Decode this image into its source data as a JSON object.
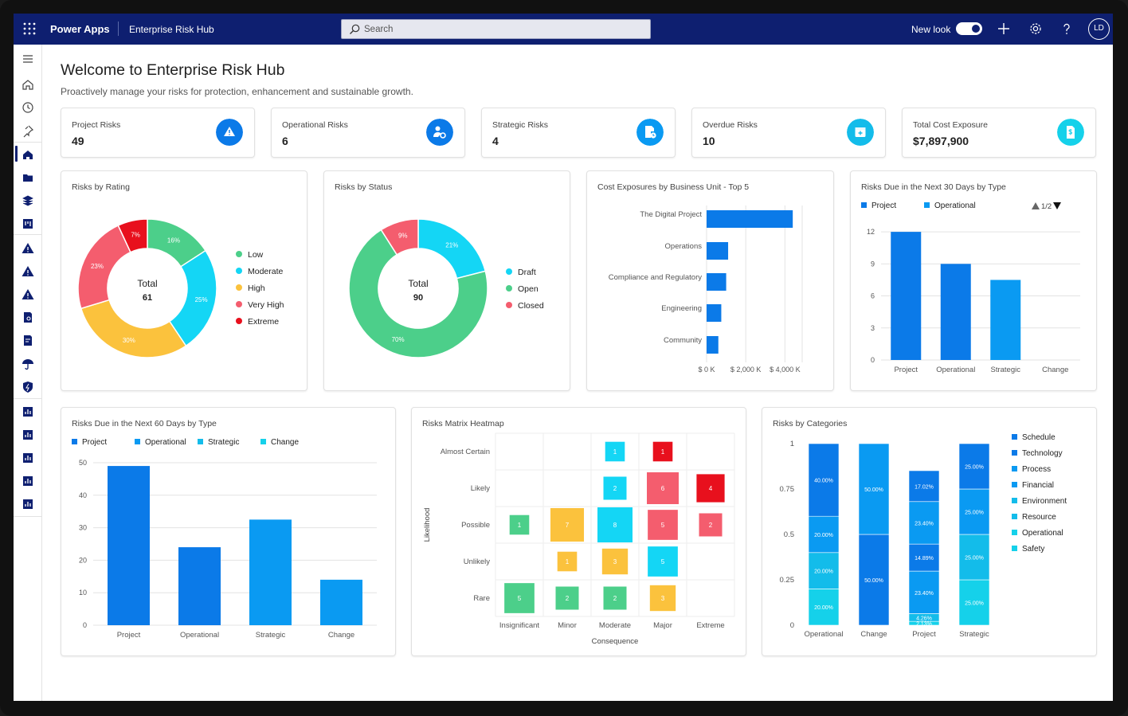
{
  "app": {
    "name": "Power Apps",
    "environment": "Enterprise Risk Hub",
    "search_placeholder": "Search",
    "new_look_label": "New look",
    "avatar_initials": "LD"
  },
  "page": {
    "title": "Welcome to Enterprise Risk Hub",
    "subtitle": "Proactively manage your risks for protection, enhancement and sustainable growth."
  },
  "kpis": [
    {
      "label": "Project Risks",
      "value": "49",
      "color": "#0b7ae8",
      "icon": "warning-icon"
    },
    {
      "label": "Operational Risks",
      "value": "6",
      "color": "#0b7ae8",
      "icon": "person-gear-icon"
    },
    {
      "label": "Strategic Risks",
      "value": "4",
      "color": "#0a9af2",
      "icon": "document-clock-icon"
    },
    {
      "label": "Overdue Risks",
      "value": "10",
      "color": "#13bcea",
      "icon": "calendar-icon"
    },
    {
      "label": "Total Cost Exposure",
      "value": "$7,897,900",
      "color": "#15d1ea",
      "icon": "document-dollar-icon"
    }
  ],
  "charts": {
    "rating": {
      "title": "Risks by Rating",
      "center_label": "Total",
      "center_value": "61",
      "slices": [
        {
          "name": "Low",
          "value": 16,
          "label": "16%",
          "color": "#4ccf8a"
        },
        {
          "name": "Moderate",
          "value": 25,
          "label": "25%",
          "color": "#14d6f5"
        },
        {
          "name": "High",
          "value": 30,
          "label": "30%",
          "color": "#fbc23d"
        },
        {
          "name": "Very High",
          "value": 23,
          "label": "23%",
          "color": "#f45d6e"
        },
        {
          "name": "Extreme",
          "value": 7,
          "label": "7%",
          "color": "#e8101d"
        }
      ]
    },
    "status": {
      "title": "Risks by Status",
      "center_label": "Total",
      "center_value": "90",
      "slices": [
        {
          "name": "Draft",
          "value": 21,
          "label": "21%",
          "color": "#14d6f5"
        },
        {
          "name": "Open",
          "value": 70,
          "label": "70%",
          "color": "#4ccf8a"
        },
        {
          "name": "Closed",
          "value": 9,
          "label": "9%",
          "color": "#f45d6e"
        }
      ]
    },
    "cost": {
      "title": "Cost Exposures by Business Unit - Top 5",
      "categories": [
        "The Digital Project",
        "Operations",
        "Compliance and Regulatory",
        "Engineering",
        "Community"
      ],
      "values": [
        4400,
        1100,
        1000,
        750,
        600
      ],
      "xticks": [
        "$ 0 K",
        "$ 2,000 K",
        "$ 4,000 K"
      ],
      "xlim": [
        0,
        4800
      ],
      "color": "#0b7ae8"
    },
    "due30": {
      "title": "Risks Due in the Next 30 Days by Type",
      "legend": [
        "Project",
        "Operational"
      ],
      "pager": "1/2",
      "categories": [
        "Project",
        "Operational",
        "Strategic",
        "Change"
      ],
      "values": [
        12,
        9,
        7.5,
        0
      ],
      "yticks": [
        "0",
        "3",
        "6",
        "9",
        "12"
      ],
      "ylim": [
        0,
        13.5
      ],
      "colors": [
        "#0b7ae8",
        "#0b7ae8",
        "#0a9af2",
        "#0a9af2"
      ],
      "legend_colors": [
        "#0b7ae8",
        "#0a9af2"
      ]
    },
    "due60": {
      "title": "Risks Due in the Next 60 Days by Type",
      "legend": [
        "Project",
        "Operational",
        "Strategic",
        "Change"
      ],
      "legend_colors": [
        "#0b7ae8",
        "#0a9af2",
        "#13bcea",
        "#15d1ea"
      ],
      "categories": [
        "Project",
        "Operational",
        "Strategic",
        "Change"
      ],
      "values": [
        49,
        24,
        32.5,
        14
      ],
      "yticks": [
        "0",
        "10",
        "20",
        "30",
        "40",
        "50"
      ],
      "ylim": [
        0,
        50
      ],
      "colors": [
        "#0b7ae8",
        "#0b7ae8",
        "#0a9af2",
        "#0a9af2"
      ]
    },
    "heatmap": {
      "title": "Risks Matrix Heatmap",
      "ylabel": "Likelihood",
      "xlabel": "Consequence",
      "rows": [
        "Almost Certain",
        "Likely",
        "Possible",
        "Unlikely",
        "Rare"
      ],
      "cols": [
        "Insignificant",
        "Minor",
        "Moderate",
        "Major",
        "Extreme"
      ],
      "cells": [
        {
          "r": 0,
          "c": 2,
          "v": 1,
          "color": "#14d6f5"
        },
        {
          "r": 0,
          "c": 3,
          "v": 1,
          "color": "#e8101d"
        },
        {
          "r": 1,
          "c": 2,
          "v": 2,
          "color": "#14d6f5"
        },
        {
          "r": 1,
          "c": 3,
          "v": 6,
          "color": "#f45d6e"
        },
        {
          "r": 1,
          "c": 4,
          "v": 4,
          "color": "#e8101d"
        },
        {
          "r": 2,
          "c": 0,
          "v": 1,
          "color": "#4ccf8a"
        },
        {
          "r": 2,
          "c": 1,
          "v": 7,
          "color": "#fbc23d"
        },
        {
          "r": 2,
          "c": 2,
          "v": 8,
          "color": "#14d6f5"
        },
        {
          "r": 2,
          "c": 3,
          "v": 5,
          "color": "#f45d6e"
        },
        {
          "r": 2,
          "c": 4,
          "v": 2,
          "color": "#f45d6e"
        },
        {
          "r": 3,
          "c": 1,
          "v": 1,
          "color": "#fbc23d"
        },
        {
          "r": 3,
          "c": 2,
          "v": 3,
          "color": "#fbc23d"
        },
        {
          "r": 3,
          "c": 3,
          "v": 5,
          "color": "#14d6f5"
        },
        {
          "r": 4,
          "c": 0,
          "v": 5,
          "color": "#4ccf8a"
        },
        {
          "r": 4,
          "c": 1,
          "v": 2,
          "color": "#4ccf8a"
        },
        {
          "r": 4,
          "c": 2,
          "v": 2,
          "color": "#4ccf8a"
        },
        {
          "r": 4,
          "c": 3,
          "v": 3,
          "color": "#fbc23d"
        }
      ]
    },
    "categories": {
      "title": "Risks by Categories",
      "legend": [
        "Schedule",
        "Technology",
        "Process",
        "Financial",
        "Environment",
        "Resource",
        "Operational",
        "Safety"
      ],
      "legend_colors": [
        "#0b7ae8",
        "#0b7ae8",
        "#0a9af2",
        "#0a9af2",
        "#13bcea",
        "#13bcea",
        "#15d1ea",
        "#15d1ea"
      ],
      "groups": [
        "Operational",
        "Change",
        "Project",
        "Strategic"
      ],
      "yticks": [
        "0",
        "0.25",
        "0.5",
        "0.75",
        "1"
      ],
      "stacks": [
        [
          {
            "v": 20,
            "label": "20.00%",
            "color": "#15d1ea"
          },
          {
            "v": 20,
            "label": "20.00%",
            "color": "#13bcea"
          },
          {
            "v": 20,
            "label": "20.00%",
            "color": "#0a9af2"
          },
          {
            "v": 40,
            "label": "40.00%",
            "color": "#0b7ae8"
          }
        ],
        [
          {
            "v": 50,
            "label": "50.00%",
            "color": "#0b7ae8"
          },
          {
            "v": 50,
            "label": "50.00%",
            "color": "#0a9af2"
          }
        ],
        [
          {
            "v": 2.13,
            "label": "2.13%",
            "color": "#15d1ea"
          },
          {
            "v": 4.26,
            "label": "4.26%",
            "color": "#13bcea"
          },
          {
            "v": 23.4,
            "label": "23.40%",
            "color": "#0a9af2"
          },
          {
            "v": 14.89,
            "label": "14.89%",
            "color": "#0b7ae8"
          },
          {
            "v": 23.4,
            "label": "23.40%",
            "color": "#0a9af2"
          },
          {
            "v": 17.02,
            "label": "17.02%",
            "color": "#0b7ae8"
          }
        ],
        [
          {
            "v": 25,
            "label": "25.00%",
            "color": "#15d1ea"
          },
          {
            "v": 25,
            "label": "25.00%",
            "color": "#13bcea"
          },
          {
            "v": 25,
            "label": "25.00%",
            "color": "#0a9af2"
          },
          {
            "v": 25,
            "label": "25.00%",
            "color": "#0b7ae8"
          }
        ]
      ]
    }
  }
}
